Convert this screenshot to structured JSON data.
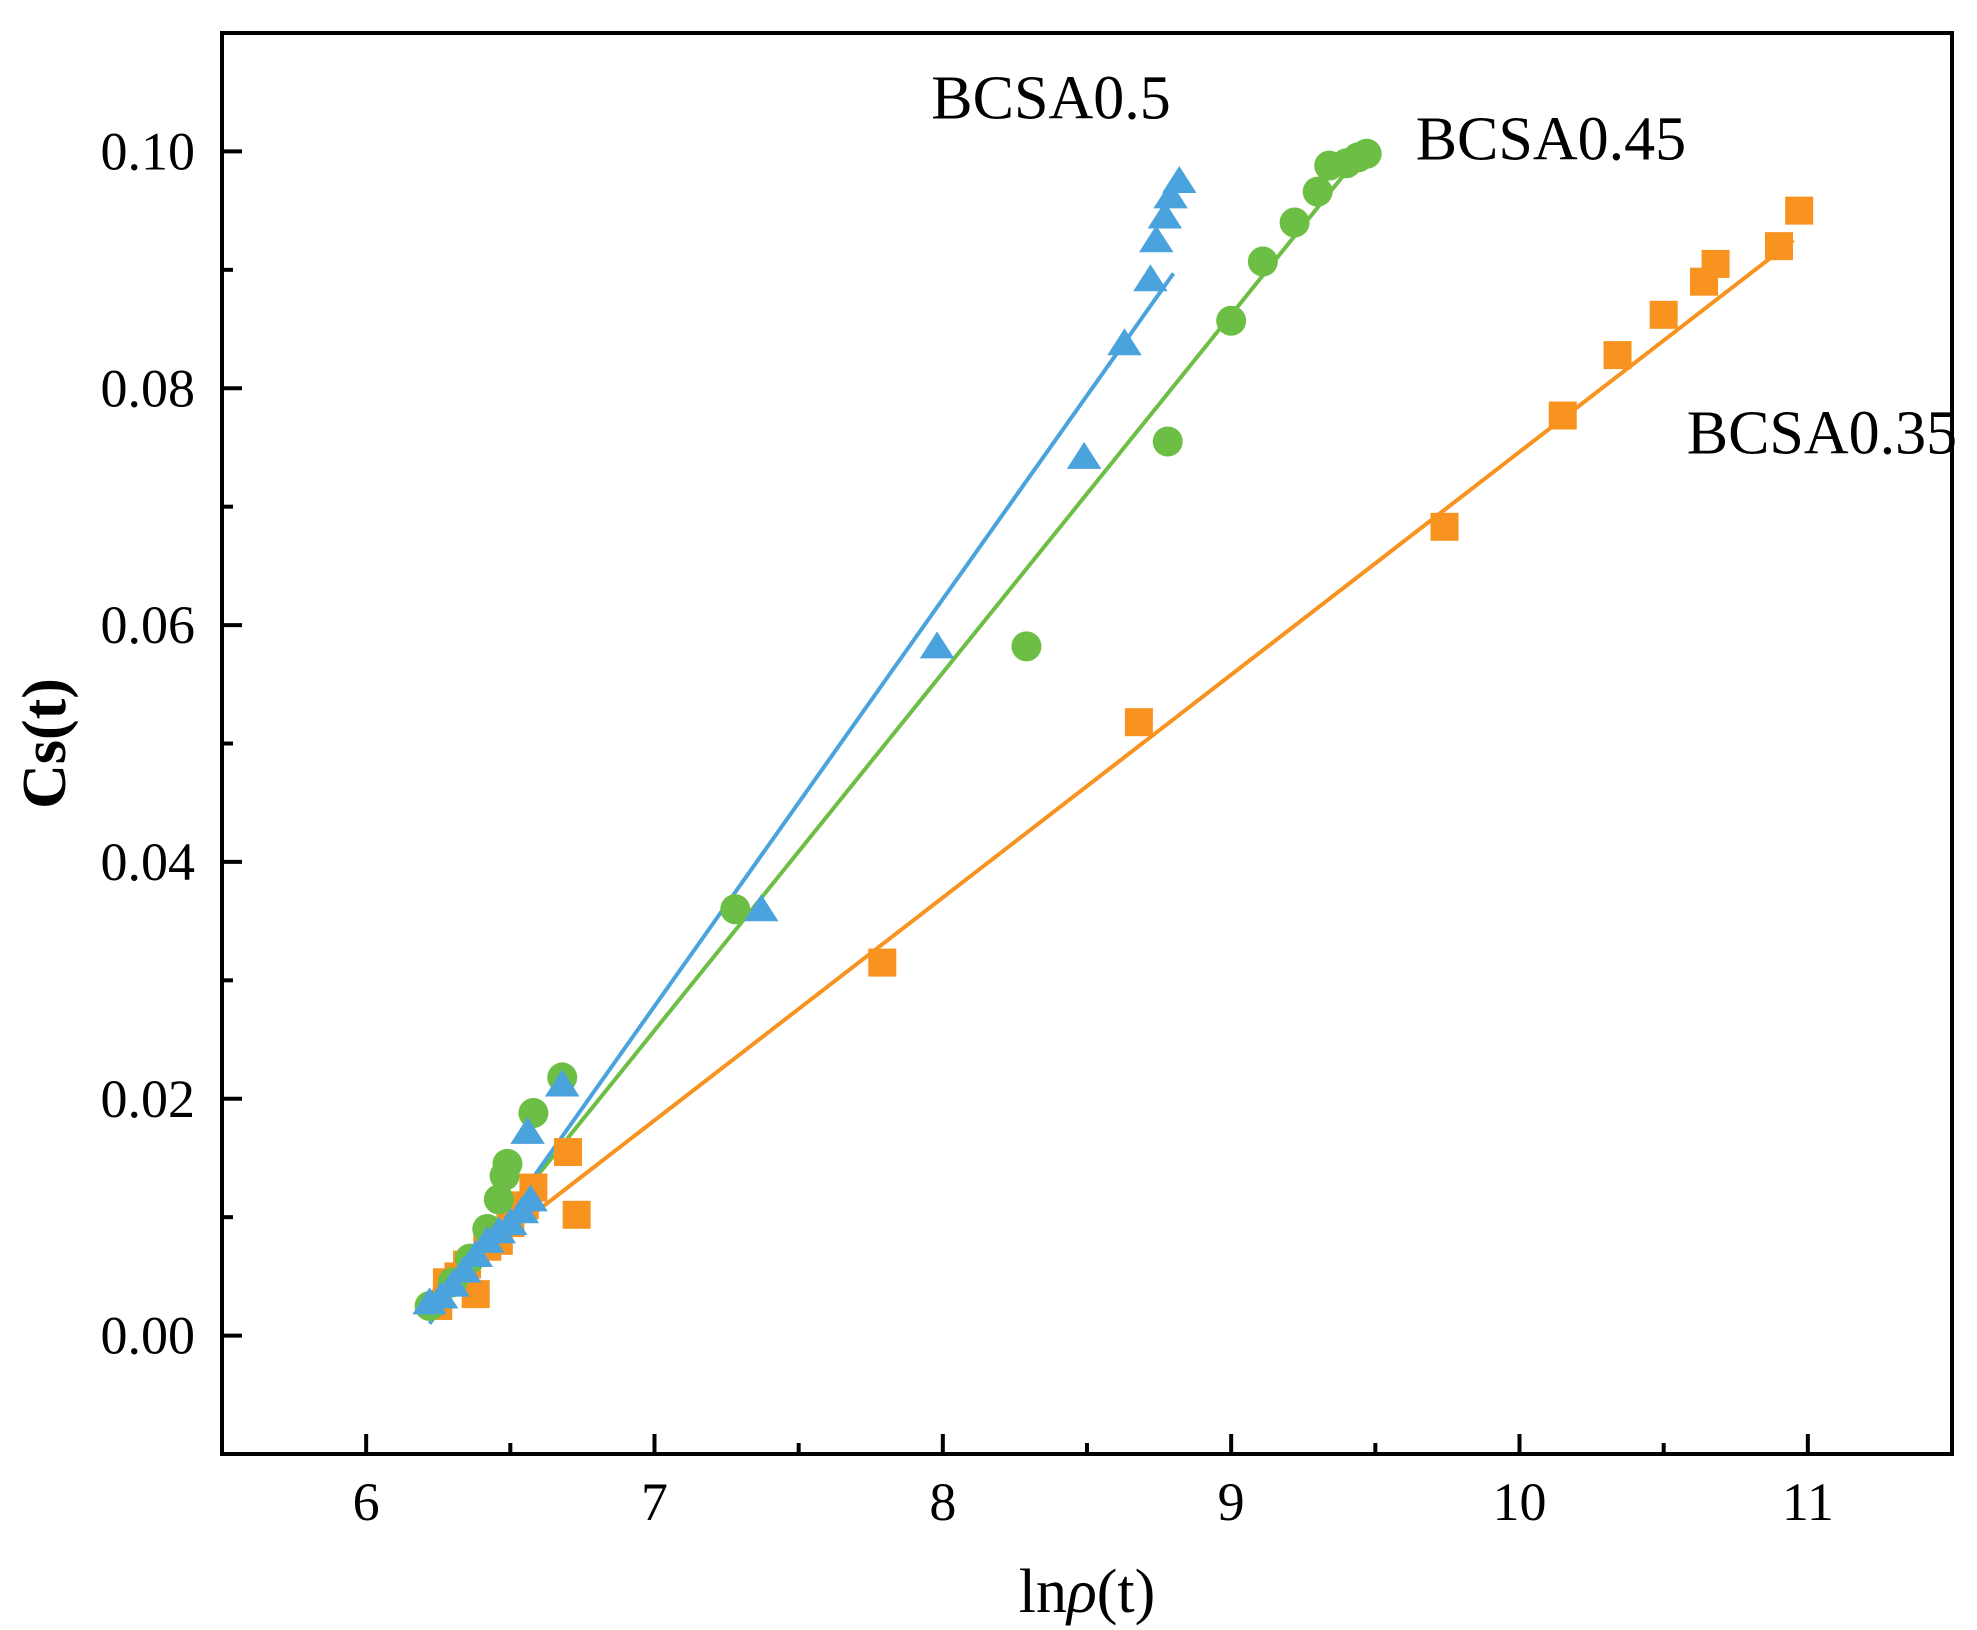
{
  "chart_data": {
    "type": "scatter",
    "title": "",
    "xlabel": {
      "prefix": "ln",
      "symbol": "ρ",
      "suffix": "(t)"
    },
    "ylabel": "Cs(t)",
    "xlim": [
      5.5,
      11.5
    ],
    "ylim": [
      -0.01,
      0.11
    ],
    "xticks": [
      6,
      7,
      8,
      9,
      10,
      11
    ],
    "xtick_labels": [
      "6",
      "7",
      "8",
      "9",
      "10",
      "11"
    ],
    "yticks": [
      0.0,
      0.02,
      0.04,
      0.06,
      0.08,
      0.1
    ],
    "ytick_labels": [
      "0.00",
      "0.02",
      "0.04",
      "0.06",
      "0.08",
      "0.10"
    ],
    "grid": false,
    "series": [
      {
        "name": "BCSA0.35",
        "marker": "square",
        "color": "#F7931E",
        "fit": {
          "x": [
            6.22,
            10.95
          ],
          "y": [
            0.0035,
            0.0925
          ]
        },
        "points": [
          [
            6.25,
            0.0025
          ],
          [
            6.28,
            0.0045
          ],
          [
            6.32,
            0.005
          ],
          [
            6.35,
            0.006
          ],
          [
            6.38,
            0.0035
          ],
          [
            6.42,
            0.0075
          ],
          [
            6.46,
            0.008
          ],
          [
            6.5,
            0.0095
          ],
          [
            6.55,
            0.011
          ],
          [
            6.58,
            0.0125
          ],
          [
            6.7,
            0.0155
          ],
          [
            6.73,
            0.0102
          ],
          [
            7.79,
            0.0315
          ],
          [
            8.68,
            0.0518
          ],
          [
            9.74,
            0.0683
          ],
          [
            10.15,
            0.0777
          ],
          [
            10.34,
            0.0828
          ],
          [
            10.5,
            0.0862
          ],
          [
            10.64,
            0.089
          ],
          [
            10.68,
            0.0905
          ],
          [
            10.9,
            0.092
          ],
          [
            10.97,
            0.095
          ]
        ]
      },
      {
        "name": "BCSA0.45",
        "marker": "circle",
        "color": "#6DBE45",
        "fit": {
          "x": [
            6.22,
            9.44
          ],
          "y": [
            0.0022,
            0.0995
          ]
        },
        "points": [
          [
            6.22,
            0.0025
          ],
          [
            6.3,
            0.0045
          ],
          [
            6.36,
            0.0065
          ],
          [
            6.42,
            0.009
          ],
          [
            6.46,
            0.0115
          ],
          [
            6.48,
            0.0135
          ],
          [
            6.49,
            0.0145
          ],
          [
            6.58,
            0.0188
          ],
          [
            6.68,
            0.0218
          ],
          [
            7.28,
            0.036
          ],
          [
            8.29,
            0.0582
          ],
          [
            8.78,
            0.0755
          ],
          [
            9.0,
            0.0857
          ],
          [
            9.11,
            0.0907
          ],
          [
            9.22,
            0.094
          ],
          [
            9.3,
            0.0966
          ],
          [
            9.34,
            0.0988
          ],
          [
            9.4,
            0.099
          ],
          [
            9.44,
            0.0995
          ],
          [
            9.47,
            0.0998
          ]
        ]
      },
      {
        "name": "BCSA0.5",
        "marker": "triangle",
        "color": "#4BA3DE",
        "fit": {
          "x": [
            6.22,
            8.8
          ],
          "y": [
            0.001,
            0.0897
          ]
        },
        "points": [
          [
            6.22,
            0.0028
          ],
          [
            6.26,
            0.0033
          ],
          [
            6.3,
            0.0043
          ],
          [
            6.34,
            0.0055
          ],
          [
            6.38,
            0.0068
          ],
          [
            6.42,
            0.008
          ],
          [
            6.46,
            0.0088
          ],
          [
            6.5,
            0.0095
          ],
          [
            6.54,
            0.0105
          ],
          [
            6.57,
            0.0115
          ],
          [
            6.56,
            0.0172
          ],
          [
            6.68,
            0.0212
          ],
          [
            7.37,
            0.036
          ],
          [
            7.98,
            0.0582
          ],
          [
            8.49,
            0.0742
          ],
          [
            8.63,
            0.0838
          ],
          [
            8.72,
            0.0892
          ],
          [
            8.74,
            0.0925
          ],
          [
            8.77,
            0.0945
          ],
          [
            8.79,
            0.0962
          ],
          [
            8.82,
            0.0975
          ]
        ]
      }
    ]
  }
}
